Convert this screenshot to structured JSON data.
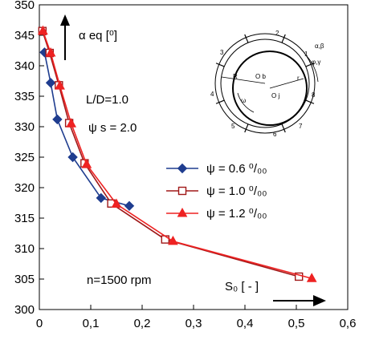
{
  "chart_data": {
    "type": "line",
    "xlabel": "S₀ [ - ]",
    "ylabel": "α eq [⁰]",
    "xlim": [
      0,
      0.6
    ],
    "ylim": [
      300,
      350
    ],
    "x_ticks": [
      "0",
      "0,1",
      "0,2",
      "0,3",
      "0,4",
      "0,5",
      "0,6"
    ],
    "y_ticks": [
      "300",
      "305",
      "310",
      "315",
      "320",
      "325",
      "330",
      "335",
      "340",
      "345",
      "350"
    ],
    "grid": false,
    "legend_position": "center-right",
    "annotations": {
      "ld": "L/D=1.0",
      "psi_s": "ψ s = 2.0",
      "rpm": "n=1500 rpm"
    },
    "series": [
      {
        "name": "ψ = 0.6 ⁰/₀₀",
        "color": "#1f3d8f",
        "marker": "diamond",
        "points": [
          [
            0.01,
            342.2
          ],
          [
            0.022,
            337.2
          ],
          [
            0.035,
            331.2
          ],
          [
            0.065,
            325.0
          ],
          [
            0.12,
            318.3
          ],
          [
            0.175,
            317.0
          ]
        ]
      },
      {
        "name": "ψ = 1.0 ⁰/₀₀",
        "color": "#a01818",
        "marker": "square-open",
        "points": [
          [
            0.006,
            345.7
          ],
          [
            0.02,
            342.1
          ],
          [
            0.038,
            336.8
          ],
          [
            0.058,
            330.6
          ],
          [
            0.088,
            324.0
          ],
          [
            0.14,
            317.4
          ],
          [
            0.245,
            311.5
          ],
          [
            0.505,
            305.4
          ]
        ]
      },
      {
        "name": "ψ = 1.2 ⁰/₀₀",
        "color": "#ee2222",
        "marker": "triangle",
        "points": [
          [
            0.007,
            345.7
          ],
          [
            0.022,
            342.1
          ],
          [
            0.04,
            336.7
          ],
          [
            0.062,
            330.5
          ],
          [
            0.092,
            323.8
          ],
          [
            0.15,
            317.3
          ],
          [
            0.26,
            311.2
          ],
          [
            0.53,
            305.1
          ]
        ]
      }
    ],
    "inset_labels": [
      "2",
      "3",
      "1",
      "4",
      "8",
      "5",
      "6",
      "7",
      "α,β",
      "φ,γ",
      "R",
      "r",
      "O b",
      "O j",
      "ω"
    ]
  }
}
